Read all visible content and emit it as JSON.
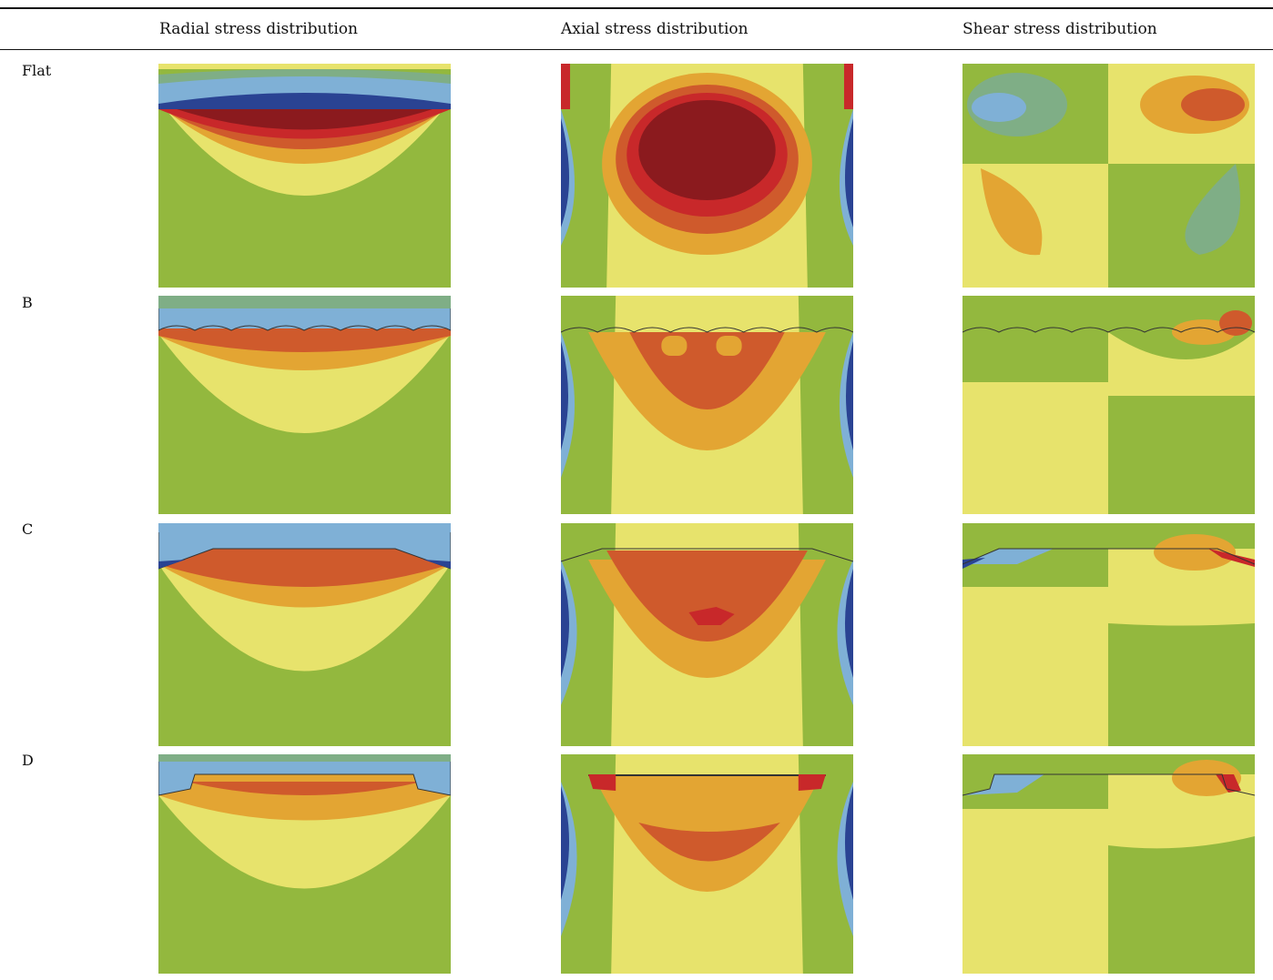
{
  "columns": [
    {
      "label": "Radial stress distribution"
    },
    {
      "label": "Axial stress distribution"
    },
    {
      "label": "Shear stress distribution"
    }
  ],
  "rows": [
    {
      "label": "Flat"
    },
    {
      "label": "B"
    },
    {
      "label": "C"
    },
    {
      "label": "D"
    }
  ],
  "contour_colors": {
    "dark_red": "#8b1a1e",
    "red": "#c8282a",
    "orange_red": "#cf5a2c",
    "orange": "#e3a533",
    "yellow": "#e7e36c",
    "green": "#93b83e",
    "teal": "#7fae86",
    "light_blue": "#7fb0d6",
    "dark_blue": "#2a4393"
  }
}
